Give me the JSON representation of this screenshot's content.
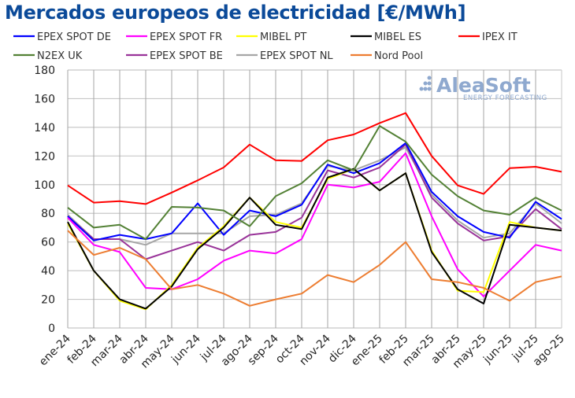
{
  "title": "Mercados europeos de electricidad [€/MWh]",
  "watermark": "AleaSoft ENERGY FORECASTING",
  "chart_data": {
    "type": "line",
    "title": "Mercados europeos de electricidad [€/MWh]",
    "xlabel": "",
    "ylabel": "",
    "ylim": [
      0,
      180
    ],
    "yticks": [
      0,
      20,
      40,
      60,
      80,
      100,
      120,
      140,
      160,
      180
    ],
    "grid": true,
    "legend_position": "top",
    "categories": [
      "ene-24",
      "feb-24",
      "mar-24",
      "abr-24",
      "may-24",
      "jun-24",
      "jul-24",
      "ago-24",
      "sep-24",
      "oct-24",
      "nov-24",
      "dic-24",
      "ene-25",
      "feb-25",
      "mar-25",
      "abr-25",
      "may-25",
      "jun-25",
      "jul-25",
      "ago-25"
    ],
    "series": [
      {
        "name": "EPEX SPOT DE",
        "color": "#0000ff",
        "values": [
          78,
          61,
          65,
          62,
          66,
          87,
          65,
          82,
          78,
          86,
          114,
          108,
          115,
          129,
          95,
          78,
          67,
          63,
          88,
          76
        ]
      },
      {
        "name": "EPEX SPOT FR",
        "color": "#ff00ff",
        "values": [
          77,
          58,
          53,
          28,
          27,
          34,
          47,
          54,
          52,
          62,
          100,
          98,
          102,
          122,
          78,
          41,
          22,
          40,
          58,
          54
        ]
      },
      {
        "name": "MIBEL PT",
        "color": "#ffff00",
        "values": [
          73,
          40,
          19,
          13,
          30,
          56,
          71,
          91,
          74,
          70,
          104,
          111,
          96,
          108,
          54,
          26,
          25,
          74,
          70,
          68
        ]
      },
      {
        "name": "MIBEL ES",
        "color": "#000000",
        "values": [
          74,
          40,
          20,
          13.5,
          29,
          55,
          70,
          91,
          72,
          69,
          105,
          111,
          96,
          108,
          53,
          27,
          17,
          72,
          70,
          68
        ]
      },
      {
        "name": "IPEX IT",
        "color": "#ff0000",
        "values": [
          99.5,
          87.5,
          88.5,
          86.5,
          94.5,
          103,
          112,
          128,
          117,
          116.5,
          131,
          135,
          143,
          150,
          120,
          99.5,
          93.5,
          111.5,
          112.5,
          109
        ]
      },
      {
        "name": "N2EX UK",
        "color": "#538135",
        "values": [
          84,
          70,
          72,
          62,
          84.5,
          84,
          82,
          71,
          92,
          101,
          117,
          110,
          141,
          130,
          107,
          92,
          82,
          79,
          91,
          82
        ]
      },
      {
        "name": "EPEX SPOT BE",
        "color": "#993399",
        "values": [
          78,
          62,
          62,
          48,
          54,
          60,
          54,
          65,
          67,
          77,
          110,
          105,
          112,
          128,
          91,
          73,
          61,
          64,
          83,
          69
        ]
      },
      {
        "name": "EPEX SPOT NL",
        "color": "#a6a6a6",
        "values": [
          79,
          62,
          62,
          58,
          66,
          66,
          66,
          78,
          79,
          87,
          113,
          110,
          117,
          126,
          93,
          75,
          63,
          66,
          87,
          73
        ]
      },
      {
        "name": "Nord Pool",
        "color": "#ed7d31",
        "values": [
          68,
          51,
          56,
          48,
          27,
          30,
          24,
          15.5,
          20,
          24,
          37,
          32,
          44,
          60,
          34,
          32,
          28,
          19,
          32,
          36
        ]
      }
    ]
  }
}
